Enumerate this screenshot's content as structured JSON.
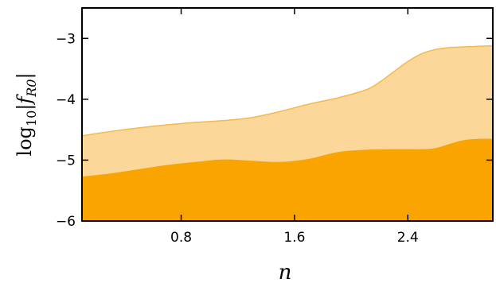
{
  "chart_data": {
    "type": "area",
    "xlabel": "n",
    "ylabel": "log10|fR0|",
    "ylabel_parts": {
      "base": "log",
      "sub": "10",
      "pre": "|",
      "var": "f",
      "var_sub": "R0",
      "post": "|"
    },
    "xlim": [
      0.1,
      3.0
    ],
    "ylim": [
      -6,
      -2.5
    ],
    "x_ticks": [
      0.8,
      1.6,
      2.4
    ],
    "x_tick_labels": [
      "0.8",
      "1.6",
      "2.4"
    ],
    "y_ticks": [
      -3,
      -4,
      -5,
      -6
    ],
    "y_tick_labels": [
      "−3",
      "−4",
      "−5",
      "−6"
    ],
    "grid": false,
    "legend": "none",
    "colors": {
      "outer": "#fbd79a",
      "outer_edge": "#f3b94f",
      "inner": "#f9a400"
    },
    "series": [
      {
        "x": [
          0.1,
          0.3,
          0.5,
          0.7,
          0.9,
          1.1,
          1.3,
          1.5,
          1.7,
          1.9,
          2.1,
          2.2,
          2.3,
          2.4,
          2.5,
          2.6,
          2.7,
          2.8,
          2.9,
          3.0
        ],
        "values": [
          -4.6,
          -4.53,
          -4.47,
          -4.42,
          -4.38,
          -4.35,
          -4.3,
          -4.2,
          -4.08,
          -3.98,
          -3.85,
          -3.72,
          -3.55,
          -3.38,
          -3.25,
          -3.18,
          -3.15,
          -3.14,
          -3.13,
          -3.12
        ]
      },
      {
        "x": [
          0.1,
          0.3,
          0.5,
          0.7,
          0.9,
          1.1,
          1.3,
          1.5,
          1.7,
          1.9,
          2.1,
          2.3,
          2.5,
          2.6,
          2.7,
          2.8,
          2.9,
          3.0
        ],
        "values": [
          -5.27,
          -5.22,
          -5.15,
          -5.08,
          -5.03,
          -4.99,
          -5.01,
          -5.03,
          -4.98,
          -4.87,
          -4.83,
          -4.82,
          -4.82,
          -4.8,
          -4.73,
          -4.67,
          -4.65,
          -4.65
        ]
      }
    ]
  }
}
